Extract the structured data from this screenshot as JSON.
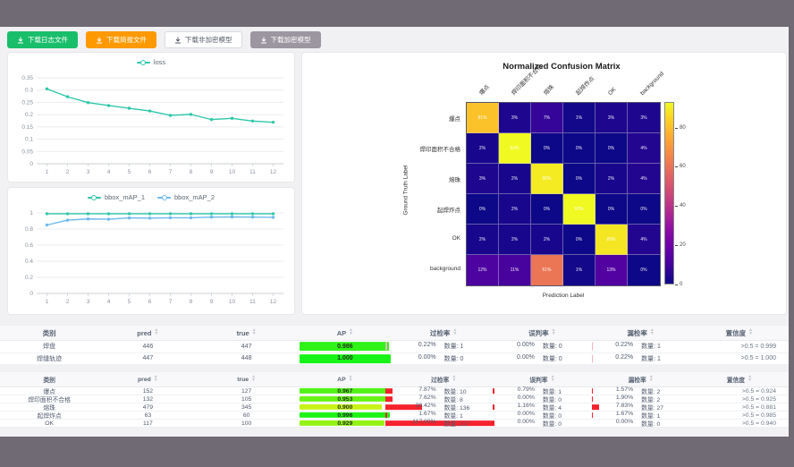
{
  "toolbar": {
    "buttons": [
      {
        "label": "下载日志文件",
        "bg": "#19be6b",
        "color": "#ffffff",
        "border": "#19be6b"
      },
      {
        "label": "下载简报文件",
        "bg": "#ff9900",
        "color": "#ffffff",
        "border": "#ff9900"
      },
      {
        "label": "下载非加密模型",
        "bg": "#ffffff",
        "color": "#555c68",
        "border": "#d7dade"
      },
      {
        "label": "下载加密模型",
        "bg": "#9b96a0",
        "color": "#ffffff",
        "border": "#9b96a0"
      }
    ]
  },
  "chart_data": [
    {
      "type": "line",
      "x": [
        1,
        2,
        3,
        4,
        5,
        6,
        7,
        8,
        9,
        10,
        11,
        12
      ],
      "series": [
        {
          "name": "loss",
          "color": "#2fc7a9",
          "values": [
            0.305,
            0.273,
            0.249,
            0.237,
            0.226,
            0.215,
            0.197,
            0.201,
            0.18,
            0.185,
            0.174,
            0.169
          ]
        }
      ],
      "ylim": [
        0,
        0.35
      ],
      "yticks": [
        0,
        0.05,
        0.1,
        0.15,
        0.2,
        0.25,
        0.3,
        0.35
      ],
      "legend_position": "top",
      "grid": true
    },
    {
      "type": "line",
      "x": [
        1,
        2,
        3,
        4,
        5,
        6,
        7,
        8,
        9,
        10,
        11,
        12
      ],
      "series": [
        {
          "name": "bbox_mAP_1",
          "color": "#2fc7a9",
          "values": [
            0.99,
            0.99,
            0.99,
            0.99,
            0.99,
            0.99,
            0.99,
            0.99,
            0.99,
            0.99,
            0.99,
            0.99
          ]
        },
        {
          "name": "bbox_mAP_2",
          "color": "#6cb8ea",
          "values": [
            0.85,
            0.91,
            0.925,
            0.922,
            0.938,
            0.935,
            0.94,
            0.94,
            0.948,
            0.95,
            0.948,
            0.945
          ]
        }
      ],
      "ylim": [
        0,
        1
      ],
      "yticks": [
        0,
        0.2,
        0.4,
        0.6,
        0.8,
        1
      ],
      "legend_position": "top",
      "grid": true
    }
  ],
  "confusion": {
    "title": "Normalized Confusion Matrix",
    "xlabel": "Prediction Label",
    "ylabel": "Ground Truth Label",
    "labels": [
      "爆点",
      "焊印面积不合格",
      "熔珠",
      "起焊炸点",
      "OK",
      "background"
    ],
    "matrix": [
      [
        81,
        3,
        7,
        1,
        3,
        3
      ],
      [
        2,
        93,
        0,
        0,
        0,
        4
      ],
      [
        3,
        2,
        90,
        0,
        2,
        4
      ],
      [
        0,
        2,
        0,
        93,
        0,
        0
      ],
      [
        2,
        2,
        2,
        0,
        89,
        4
      ],
      [
        12,
        11,
        61,
        1,
        13,
        0
      ]
    ],
    "vmax": 93,
    "colorbar_ticks": [
      0,
      20,
      40,
      60,
      80
    ]
  },
  "tables": {
    "headers": {
      "class": "类别",
      "pred": "pred",
      "true": "true",
      "ap": "AP",
      "over": "过检率",
      "mis": "误判率",
      "miss": "漏检率",
      "conf": "置信度",
      "count_label": "数量:"
    },
    "groups": [
      {
        "rows": [
          {
            "name": "焊盘",
            "pred": 446,
            "true": 447,
            "ap": "0.986",
            "over": "0.22%",
            "overN": 1,
            "mis": "0.00%",
            "misN": 0,
            "miss": "0.22%",
            "missN": 1,
            "conf": ">0.5 = 0.999"
          },
          {
            "name": "焊缝轨迹",
            "pred": 447,
            "true": 448,
            "ap": "1.000",
            "over": "0.00%",
            "overN": 0,
            "mis": "0.00%",
            "misN": 0,
            "miss": "0.22%",
            "missN": 1,
            "conf": ">0.5 = 1.000"
          }
        ]
      },
      {
        "rows": [
          {
            "name": "爆点",
            "pred": 152,
            "true": 127,
            "ap": "0.967",
            "over": "7.87%",
            "overN": 10,
            "mis": "0.79%",
            "misN": 1,
            "miss": "1.57%",
            "missN": 2,
            "conf": ">0.5 = 0.924"
          },
          {
            "name": "焊印面积不合格",
            "pred": 132,
            "true": 105,
            "ap": "0.953",
            "over": "7.62%",
            "overN": 8,
            "mis": "0.00%",
            "misN": 0,
            "miss": "1.90%",
            "missN": 2,
            "conf": ">0.5 = 0.925"
          },
          {
            "name": "熔珠",
            "pred": 479,
            "true": 345,
            "ap": "0.900",
            "over": "39.42%",
            "overN": 136,
            "mis": "1.16%",
            "misN": 4,
            "miss": "7.83%",
            "missN": 27,
            "conf": ">0.5 = 0.881"
          },
          {
            "name": "起焊炸点",
            "pred": 63,
            "true": 60,
            "ap": "0.996",
            "over": "1.67%",
            "overN": 1,
            "mis": "0.00%",
            "misN": 0,
            "miss": "1.67%",
            "missN": 1,
            "conf": ">0.5 = 0.985"
          },
          {
            "name": "OK",
            "pred": 117,
            "true": 100,
            "ap": "0.929",
            "over": "117.00%",
            "overN": 117,
            "mis": "0.00%",
            "misN": 0,
            "miss": "0.00%",
            "missN": 0,
            "conf": ">0.5 = 0.940"
          }
        ]
      }
    ]
  }
}
